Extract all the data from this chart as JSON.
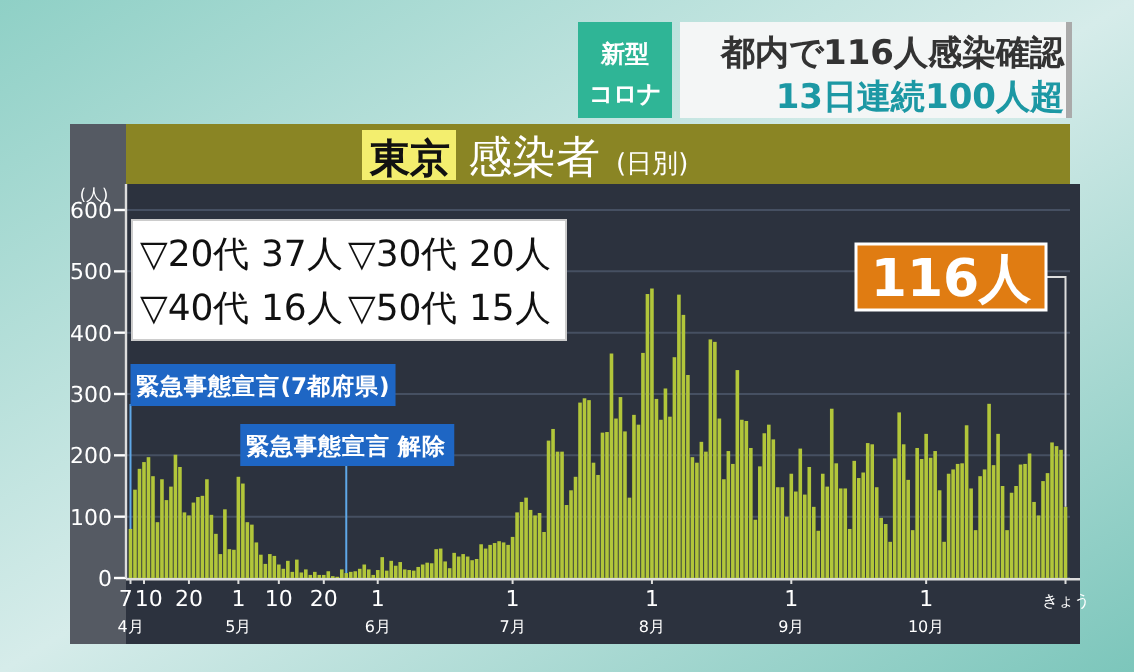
{
  "chart_data": {
    "type": "bar",
    "title": "東京 感染者 (日別)",
    "ylabel": "(人)",
    "annotations": [
      "新型コロナ",
      "都内で116人感染確認",
      "13日連続100人超",
      "▽20代 37人",
      "▽30代 20人",
      "▽40代 16人",
      "▽50代 15人",
      "116人"
    ],
    "color": "#b2c63a",
    "x": [
      "--04-07",
      "--04-08",
      "--04-09",
      "--04-10",
      "--04-11",
      "--04-12",
      "--04-13",
      "--04-14",
      "--04-15",
      "--04-16",
      "--04-17",
      "--04-18",
      "--04-19",
      "--04-20",
      "--04-21",
      "--04-22",
      "--04-23",
      "--04-24",
      "--04-25",
      "--04-26",
      "--04-27",
      "--04-28",
      "--04-29",
      "--04-30",
      "--05-01",
      "--05-02",
      "--05-03",
      "--05-04",
      "--05-05",
      "--05-06",
      "--05-07",
      "--05-08",
      "--05-09",
      "--05-10",
      "--05-11",
      "--05-12",
      "--05-13",
      "--05-14",
      "--05-15",
      "--05-16",
      "--05-17",
      "--05-18",
      "--05-19",
      "--05-20",
      "--05-21",
      "--05-22",
      "--05-23",
      "--05-24",
      "--05-25",
      "--05-26",
      "--05-27",
      "--05-28",
      "--05-29",
      "--05-30",
      "--05-31",
      "--06-01",
      "--06-02",
      "--06-03",
      "--06-04",
      "--06-05",
      "--06-06",
      "--06-07",
      "--06-08",
      "--06-09",
      "--06-10",
      "--06-11",
      "--06-12",
      "--06-13",
      "--06-14",
      "--06-15",
      "--06-16",
      "--06-17",
      "--06-18",
      "--06-19",
      "--06-20",
      "--06-21",
      "--06-22",
      "--06-23",
      "--06-24",
      "--06-25",
      "--06-26",
      "--06-27",
      "--06-28",
      "--06-29",
      "--06-30",
      "--07-01",
      "--07-02",
      "--07-03",
      "--07-04",
      "--07-05",
      "--07-06",
      "--07-07",
      "--07-08",
      "--07-09",
      "--07-10",
      "--07-11",
      "--07-12",
      "--07-13",
      "--07-14",
      "--07-15",
      "--07-16",
      "--07-17",
      "--07-18",
      "--07-19",
      "--07-20",
      "--07-21",
      "--07-22",
      "--07-23",
      "--07-24",
      "--07-25",
      "--07-26",
      "--07-27",
      "--07-28",
      "--07-29",
      "--07-30",
      "--07-31",
      "--08-01",
      "--08-02",
      "--08-03",
      "--08-04",
      "--08-05",
      "--08-06",
      "--08-07",
      "--08-08",
      "--08-09",
      "--08-10",
      "--08-11",
      "--08-12",
      "--08-13",
      "--08-14",
      "--08-15",
      "--08-16",
      "--08-17",
      "--08-18",
      "--08-19",
      "--08-20",
      "--08-21",
      "--08-22",
      "--08-23",
      "--08-24",
      "--08-25",
      "--08-26",
      "--08-27",
      "--08-28",
      "--08-29",
      "--08-30",
      "--08-31",
      "--09-01",
      "--09-02",
      "--09-03",
      "--09-04",
      "--09-05",
      "--09-06",
      "--09-07",
      "--09-08",
      "--09-09",
      "--09-10",
      "--09-11",
      "--09-12",
      "--09-13",
      "--09-14",
      "--09-15",
      "--09-16",
      "--09-17",
      "--09-18",
      "--09-19",
      "--09-20",
      "--09-21",
      "--09-22",
      "--09-23",
      "--09-24",
      "--09-25",
      "--09-26",
      "--09-27",
      "--09-28",
      "--09-29",
      "--09-30",
      "--10-01",
      "--10-02",
      "--10-03",
      "--10-04",
      "--10-05",
      "--10-06",
      "--10-07",
      "--10-08",
      "--10-09",
      "--10-10",
      "--10-11",
      "--10-12",
      "--10-13",
      "--10-14",
      "--10-15",
      "--10-16",
      "--10-17",
      "--10-18",
      "--10-19",
      "--10-20",
      "--10-21",
      "--10-22",
      "--10-23",
      "--10-24",
      "--10-25",
      "--10-26",
      "--10-27",
      "--10-28",
      "--10-29",
      "--10-30",
      "--10-31",
      "--11-01"
    ],
    "values": [
      80,
      144,
      178,
      189,
      197,
      166,
      91,
      161,
      127,
      149,
      201,
      181,
      107,
      102,
      123,
      132,
      134,
      161,
      103,
      72,
      39,
      112,
      47,
      46,
      165,
      154,
      91,
      87,
      58,
      38,
      23,
      39,
      36,
      22,
      15,
      28,
      10,
      30,
      9,
      14,
      5,
      10,
      5,
      5,
      11,
      3,
      2,
      14,
      8,
      10,
      11,
      15,
      22,
      14,
      5,
      13,
      34,
      12,
      28,
      20,
      26,
      14,
      13,
      12,
      18,
      22,
      25,
      24,
      47,
      48,
      27,
      16,
      41,
      35,
      39,
      35,
      29,
      31,
      55,
      48,
      54,
      57,
      60,
      58,
      54,
      67,
      107,
      124,
      131,
      111,
      102,
      106,
      75,
      224,
      243,
      206,
      206,
      119,
      143,
      165,
      286,
      293,
      290,
      188,
      168,
      237,
      238,
      366,
      260,
      295,
      239,
      131,
      266,
      250,
      367,
      463,
      472,
      292,
      258,
      309,
      263,
      360,
      462,
      429,
      331,
      197,
      188,
      222,
      206,
      389,
      385,
      260,
      161,
      207,
      186,
      339,
      258,
      256,
      212,
      95,
      182,
      236,
      250,
      226,
      148,
      148,
      100,
      170,
      141,
      211,
      136,
      181,
      116,
      77,
      170,
      149,
      276,
      187,
      146,
      146,
      80,
      191,
      163,
      172,
      220,
      218,
      148,
      98,
      88,
      59,
      195,
      270,
      218,
      160,
      78,
      212,
      194,
      235,
      196,
      207,
      143,
      59,
      170,
      177,
      186,
      187,
      249,
      146,
      78,
      166,
      177,
      284,
      184,
      235,
      150,
      78,
      139,
      150,
      185,
      186,
      203,
      124,
      102,
      158,
      171,
      221,
      215,
      209,
      116
    ],
    "xlim": [
      "--04-06",
      "--11-02"
    ],
    "xticks": [
      {
        "value": "--04-07",
        "label": "7\n4月"
      },
      {
        "value": "--04-10",
        "label": "10"
      },
      {
        "value": "--04-20",
        "label": "20"
      },
      {
        "value": "--05-01",
        "label": "1\n5月"
      },
      {
        "value": "--05-10",
        "label": "10"
      },
      {
        "value": "--05-20",
        "label": "20"
      },
      {
        "value": "--06-01",
        "label": "1\n6月"
      },
      {
        "value": "--07-01",
        "label": "1\n7月"
      },
      {
        "value": "--08-01",
        "label": "1\n8月"
      },
      {
        "value": "--09-01",
        "label": "1\n9月"
      },
      {
        "value": "--10-01",
        "label": "1\n10月"
      },
      {
        "value": "--11-01",
        "label": "きょう"
      }
    ],
    "ylim": [
      0,
      600
    ],
    "yticks": [
      0,
      100,
      200,
      300,
      400,
      500,
      600
    ],
    "ref_lines": [
      {
        "axis": "x",
        "value": "--04-07",
        "label": "緊急事態宣言(7都府県)",
        "color": "#5fa8e8"
      },
      {
        "axis": "x",
        "value": "--05-25",
        "label": "緊急事態宣言 解除",
        "color": "#5fa8e8"
      }
    ],
    "grid": "y"
  }
}
